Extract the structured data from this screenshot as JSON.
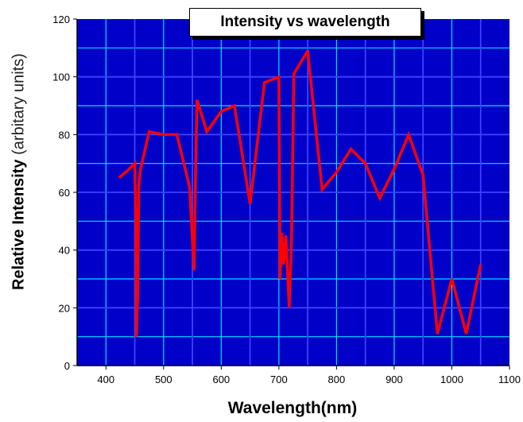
{
  "chart_data": {
    "type": "line",
    "title": "Intensity vs wavelength",
    "xlabel": "Wavelength(nm)",
    "ylabel_main": "Relative Intensity",
    "ylabel_unit": "(arbitary units)",
    "xlim": [
      350,
      1100
    ],
    "ylim": [
      0,
      120
    ],
    "xticks": [
      400,
      500,
      600,
      700,
      800,
      900,
      1000,
      1100
    ],
    "yticks": [
      0,
      20,
      40,
      60,
      80,
      100,
      120
    ],
    "x_major_grid": [
      450,
      550,
      650,
      750,
      850,
      950,
      1050
    ],
    "x_minor_grid": [
      400,
      500,
      600,
      700,
      800,
      900,
      1000
    ],
    "y_major_grid": [
      20,
      40,
      60,
      80,
      100
    ],
    "y_minor_grid": [
      10,
      30,
      50,
      70,
      90,
      110
    ],
    "grid": true,
    "colors": {
      "background": "#0000c8",
      "major_grid": "#4040ff",
      "minor_grid": "#00e0ff",
      "line": "#ff0000"
    },
    "series": [
      {
        "x": [
          423,
          440,
          450,
          452,
          453,
          455,
          457,
          460,
          475,
          500,
          523,
          545,
          553,
          555,
          558,
          575,
          600,
          623,
          650,
          675,
          700,
          702,
          705,
          708,
          712,
          718,
          722,
          726,
          750,
          775,
          800,
          825,
          850,
          875,
          900,
          925,
          950,
          975,
          1000,
          1025,
          1050
        ],
        "y": [
          65,
          68,
          70,
          50,
          10,
          25,
          62,
          68,
          81,
          80,
          80,
          62,
          33,
          62,
          92,
          81,
          88,
          90,
          56,
          98,
          100,
          30,
          46,
          35,
          45,
          20,
          44,
          101,
          109,
          61,
          67,
          75,
          70,
          58,
          68,
          80,
          66,
          11,
          30,
          11,
          35
        ]
      }
    ]
  }
}
